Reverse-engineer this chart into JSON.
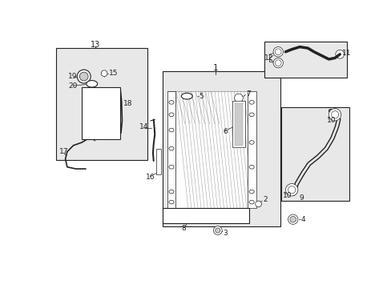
{
  "bg_color": "#ffffff",
  "fig_width": 4.89,
  "fig_height": 3.6,
  "dpi": 100,
  "gray_box": "#e8e8e8",
  "line_color": "#222222",
  "gray_med": "#999999",
  "gray_light": "#cccccc"
}
